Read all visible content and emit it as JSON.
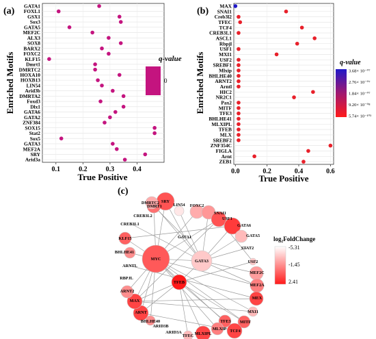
{
  "panels": {
    "a": "(a)",
    "b": "(b)",
    "c": "(c)"
  },
  "chart_data": [
    {
      "type": "scatter",
      "title": "",
      "xlabel": "True Positive",
      "ylabel": "Enriched Motifs",
      "xlim": [
        0.05,
        0.5
      ],
      "xticks": [
        0.1,
        0.2,
        0.3,
        0.4
      ],
      "xtick_labels": [
        "0.1",
        "0.2",
        "0.3",
        "0.4"
      ],
      "grid": true,
      "legend": {
        "title": "q-value",
        "labels": [
          "0"
        ],
        "color": "#c4147f",
        "placement": "right"
      },
      "point_color": "#c4147f",
      "categories": [
        "GATA1",
        "FOXL1",
        "GSX1",
        "Sox3",
        "GATA5",
        "MEF2C",
        "ALX3",
        "SOX8",
        "BARX2",
        "FOXC2",
        "KLF15",
        "Dmrt1",
        "DMRTC2",
        "HOXA10",
        "HOXB13",
        "LIN54",
        "Arid3b",
        "DMRTA2",
        "Foxd3",
        "Dlx1",
        "GATA6",
        "GATA2",
        "ZNF384",
        "SOX15",
        "Stat2",
        "Sox5",
        "GATA3",
        "MEF2A",
        "SRY",
        "Arid3a"
      ],
      "values": [
        0.26,
        0.11,
        0.335,
        0.34,
        0.15,
        0.235,
        0.295,
        0.34,
        0.27,
        0.295,
        0.075,
        0.245,
        0.245,
        0.335,
        0.255,
        0.27,
        0.31,
        0.35,
        0.265,
        0.35,
        0.32,
        0.3,
        0.28,
        0.465,
        0.465,
        0.12,
        0.31,
        0.325,
        0.43,
        0.355
      ]
    },
    {
      "type": "scatter",
      "title": "",
      "xlabel": "True Positive",
      "ylabel": "Enriched Motifs",
      "xlim": [
        -0.01,
        0.62
      ],
      "xticks": [
        0.0,
        0.2,
        0.4,
        0.6
      ],
      "xtick_labels": [
        "0.0",
        "0.2",
        "0.4",
        "0.6"
      ],
      "grid": true,
      "legend": {
        "title": "q-value",
        "labels": [
          "3.68× 10⁻⁰⁷",
          "2.76× 10⁻⁰⁷",
          "1.84× 10⁻⁰⁷",
          "9.20× 10⁻⁰⁸",
          "5.74× 10⁻¹⁰³"
        ],
        "colors": [
          "#2018c8",
          "#ff1a1a"
        ],
        "placement": "right"
      },
      "categories": [
        "MAX",
        "SNAI1",
        "Creb3l2",
        "TFEC",
        "TCF4",
        "CREB3L1",
        "ASCL1",
        "Rbpjl",
        "USF1",
        "MXI1",
        "USF2",
        "SREBF1",
        "Mlxip",
        "BHLHE40",
        "ARNT2",
        "Arntl",
        "HIC2",
        "NR2C1",
        "Pax2",
        "MITF",
        "TFE3",
        "BHLHE41",
        "MLXIPL",
        "TFEB",
        "MLX",
        "SREBF2",
        "ZNF354C",
        "FIGLA",
        "Arnt",
        "ZEB1"
      ],
      "values": [
        0.0,
        0.32,
        0.02,
        0.03,
        0.42,
        0.02,
        0.5,
        0.39,
        0.02,
        0.26,
        0.02,
        0.02,
        0.02,
        0.02,
        0.02,
        0.02,
        0.49,
        0.37,
        0.02,
        0.02,
        0.02,
        0.02,
        0.02,
        0.02,
        0.02,
        0.02,
        0.6,
        0.46,
        0.12,
        0.43
      ],
      "colors": [
        "#2018c8",
        "#e8202a",
        "#e8202a",
        "#e8202a",
        "#e8202a",
        "#e8202a",
        "#e8202a",
        "#e8202a",
        "#e8202a",
        "#e8202a",
        "#e8202a",
        "#e8202a",
        "#e8202a",
        "#e8202a",
        "#e8202a",
        "#e8202a",
        "#e8202a",
        "#e8202a",
        "#e8202a",
        "#e8202a",
        "#e8202a",
        "#e8202a",
        "#e8202a",
        "#e8202a",
        "#e8202a",
        "#e8202a",
        "#e8202a",
        "#e8202a",
        "#e8202a",
        "#e8202a"
      ]
    },
    {
      "type": "network",
      "legend": {
        "title": "log₂FoldChange",
        "labels": [
          "-5.31",
          "-1.45",
          "2.41"
        ],
        "colors": [
          "#ffffff",
          "#ff1a1a"
        ],
        "placement": "right"
      },
      "nodes": [
        "LIN54",
        "FOXC2",
        "SNAI1",
        "USF1",
        "GATA6",
        "GATA5",
        "STAT2",
        "USF2",
        "MEF2C",
        "MEF2A",
        "MEX",
        "MXI1",
        "MITF",
        "TCF4",
        "TFE3",
        "MLXIP",
        "MLXIPL",
        "TFEC",
        "ARID3A",
        "ARID3B",
        "BHLHE40",
        "ARNT",
        "MAX",
        "ARNT2",
        "RBPJL",
        "ARNTL",
        "BHLHE41",
        "KLF15",
        "CREB3L1",
        "CREB3L2",
        "DMRT1",
        "SRY",
        "DMRTC2",
        "GATA1",
        "GATA3",
        "MYC",
        "TFEB"
      ],
      "sizes": [
        7,
        10,
        10,
        11,
        12,
        9,
        0,
        5,
        10,
        10,
        10,
        7,
        9,
        11,
        9,
        9,
        11,
        7,
        0,
        0,
        7,
        11,
        11,
        9,
        0,
        0,
        8,
        9,
        0,
        0,
        10,
        13,
        9,
        0,
        15,
        20,
        11
      ],
      "fc": [
        -4.5,
        -2.5,
        -1.8,
        0.5,
        1.3,
        -3,
        0,
        -3.5,
        -2.0,
        -1.0,
        1.0,
        -3,
        0,
        1.0,
        0.0,
        -1.0,
        1.0,
        -3,
        0,
        0,
        -1.5,
        1.0,
        1.0,
        -1.5,
        0,
        0,
        -1.5,
        0,
        0,
        0,
        -0.5,
        0.5,
        -2.5,
        0,
        -3.5,
        0.3,
        2.41
      ]
    }
  ]
}
